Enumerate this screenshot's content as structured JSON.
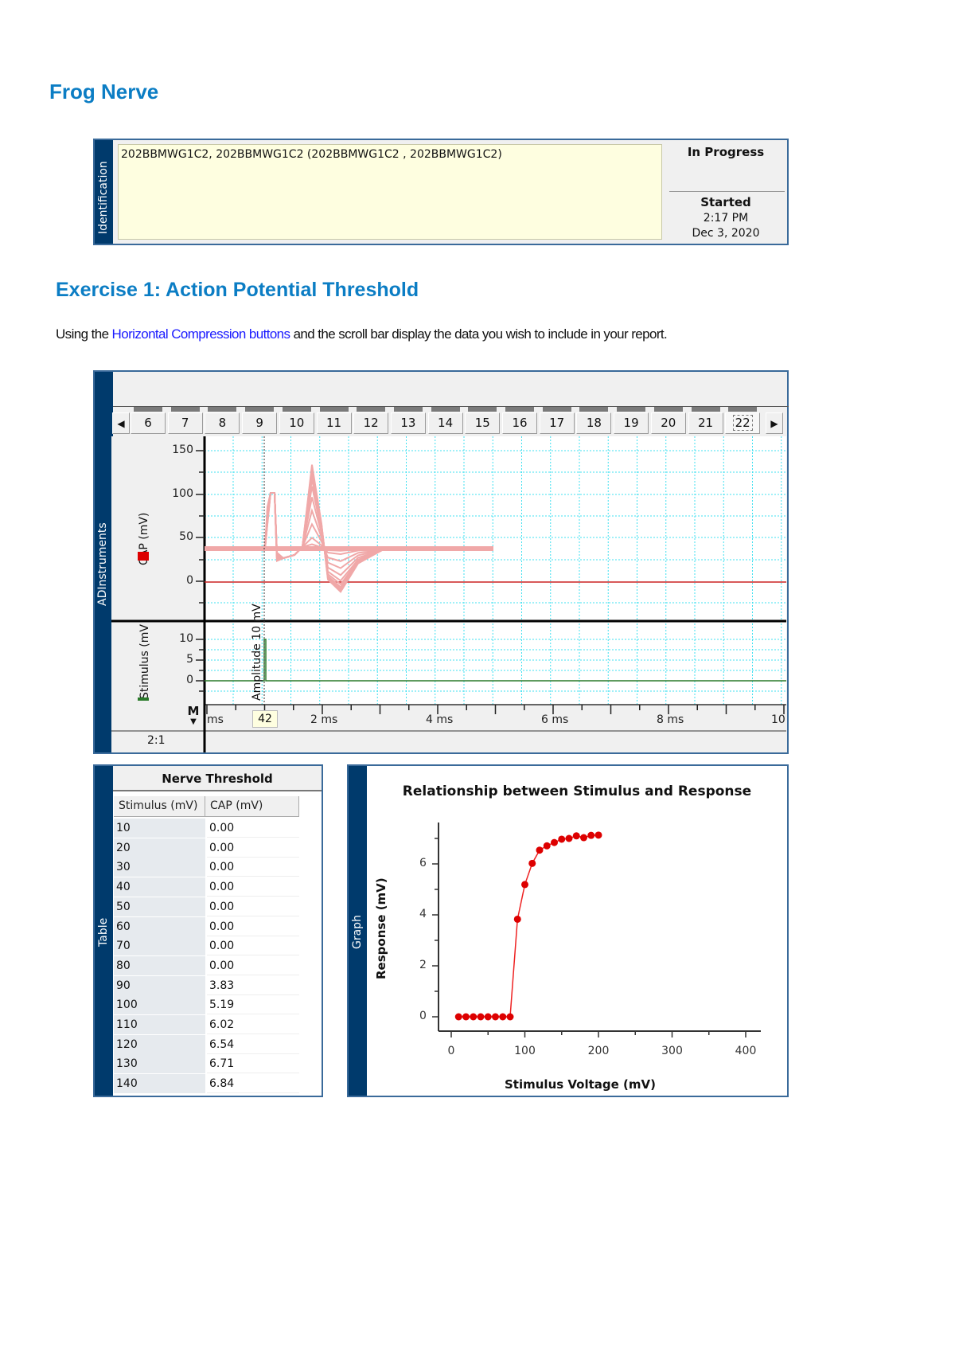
{
  "page": {
    "title": "Frog Nerve",
    "exercise_title": "Exercise 1: Action Potential Threshold",
    "instruction": {
      "prefix": "Using the ",
      "link": "Horizontal Compression buttons",
      "suffix": " and the scroll bar display the data you wish to include in your report."
    }
  },
  "identification": {
    "side_label": "Identification",
    "value": "202BBMWG1C2, 202BBMWG1C2  (202BBMWG1C2 , 202BBMWG1C2)",
    "status": "In Progress",
    "started_label": "Started",
    "started_time": "2:17 PM",
    "started_date": "Dec 3, 2020"
  },
  "recorder": {
    "side_label": "ADInstruments",
    "tabs": [
      "6",
      "7",
      "8",
      "9",
      "10",
      "11",
      "12",
      "13",
      "14",
      "15",
      "16",
      "17",
      "18",
      "19",
      "20",
      "21",
      "22"
    ],
    "active_tab": "22",
    "prev_arrow": "◀",
    "next_arrow": "▶",
    "cap_channel": {
      "label": "CAP (mV)",
      "color": "#dd0000",
      "trace_color": "#f0a8a8",
      "ticks": [
        "150",
        "100",
        "50",
        "0"
      ]
    },
    "stim_channel": {
      "label": "Stimulus (mV)",
      "color": "#2a7a2a",
      "ticks": [
        "10",
        "5",
        "0"
      ]
    },
    "marker_annotation": "Amplitude 10 mV",
    "marker_button": "M",
    "time_labels": [
      "ms",
      "2 ms",
      "4 ms",
      "6 ms",
      "8 ms",
      "10"
    ],
    "time_cursor_value": "42",
    "zoom_ratio": "2:1",
    "grid_color": "#40e0f0"
  },
  "table": {
    "side_label": "Table",
    "title": "Nerve Threshold",
    "columns": [
      "Stimulus (mV)",
      "CAP (mV)"
    ],
    "rows": [
      [
        "10",
        "0.00"
      ],
      [
        "20",
        "0.00"
      ],
      [
        "30",
        "0.00"
      ],
      [
        "40",
        "0.00"
      ],
      [
        "50",
        "0.00"
      ],
      [
        "60",
        "0.00"
      ],
      [
        "70",
        "0.00"
      ],
      [
        "80",
        "0.00"
      ],
      [
        "90",
        "3.83"
      ],
      [
        "100",
        "5.19"
      ],
      [
        "110",
        "6.02"
      ],
      [
        "120",
        "6.54"
      ],
      [
        "130",
        "6.71"
      ],
      [
        "140",
        "6.84"
      ]
    ]
  },
  "graph": {
    "side_label": "Graph",
    "title": "Relationship between Stimulus and Response",
    "xlabel": "Stimulus Voltage (mV)",
    "ylabel": "Response (mV)",
    "xticks": [
      "0",
      "100",
      "200",
      "300",
      "400"
    ],
    "yticks": [
      "0",
      "2",
      "4",
      "6"
    ]
  },
  "chart_data": {
    "type": "line",
    "title": "Relationship between Stimulus and Response",
    "xlabel": "Stimulus Voltage (mV)",
    "ylabel": "Response (mV)",
    "xlim": [
      -15,
      415
    ],
    "ylim": [
      -0.6,
      7.6
    ],
    "x": [
      10,
      20,
      30,
      40,
      50,
      60,
      70,
      80,
      90,
      100,
      110,
      120,
      130,
      140,
      150,
      160,
      170,
      180,
      190,
      200
    ],
    "series": [
      {
        "name": "Response",
        "color": "#dd0000",
        "values": [
          0,
          0,
          0,
          0,
          0,
          0,
          0,
          0,
          3.83,
          5.19,
          6.02,
          6.54,
          6.71,
          6.84,
          6.97,
          7.0,
          7.1,
          7.03,
          7.12,
          7.13
        ]
      }
    ],
    "grid": false,
    "legend": "none"
  }
}
